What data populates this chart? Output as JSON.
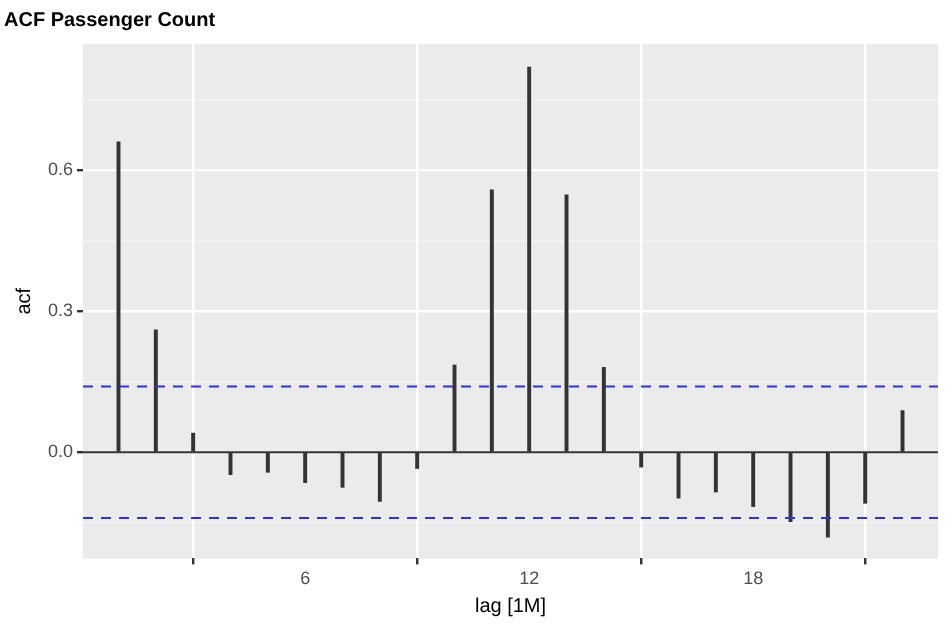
{
  "chart_data": {
    "type": "bar",
    "title": "ACF Passenger Count",
    "xlabel": "lag [1M]",
    "ylabel": "acf",
    "x": [
      1,
      2,
      3,
      4,
      5,
      6,
      7,
      8,
      9,
      10,
      11,
      12,
      13,
      14,
      15,
      16,
      17,
      18,
      19,
      20,
      21,
      22
    ],
    "values": [
      0.66,
      0.26,
      0.04,
      -0.047,
      -0.042,
      -0.064,
      -0.074,
      -0.104,
      -0.034,
      0.185,
      0.558,
      0.819,
      0.547,
      0.18,
      -0.031,
      -0.097,
      -0.084,
      -0.115,
      -0.147,
      -0.18,
      -0.108,
      0.088
    ],
    "color": "#333333",
    "xlim": [
      0.05,
      22.95
    ],
    "xticks": [
      6,
      12,
      18
    ],
    "ylim": [
      -0.226,
      0.869
    ],
    "yticks": [
      {
        "value": 0,
        "label": "0.0"
      },
      {
        "value": 0.3,
        "label": "0.3"
      },
      {
        "value": 0.6,
        "label": "0.6"
      }
    ],
    "ref_lines": [
      {
        "axis": "y",
        "value": 0,
        "color": "#333333",
        "line_style": "solid"
      },
      {
        "axis": "y",
        "value": 0.14,
        "color": "#3333cc",
        "line_style": "dashed"
      },
      {
        "axis": "y",
        "value": -0.14,
        "color": "#3333cc",
        "line_style": "dashed"
      }
    ],
    "grid": true,
    "legend": false
  }
}
